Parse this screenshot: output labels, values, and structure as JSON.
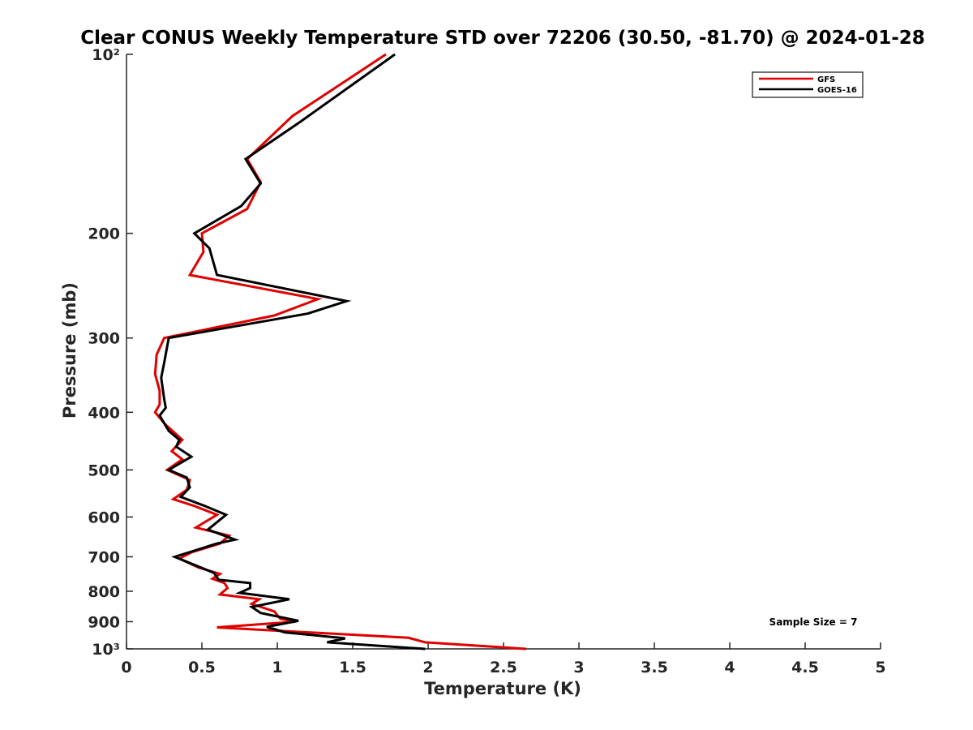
{
  "chart_data": {
    "type": "line",
    "title": "Clear CONUS Weekly Temperature STD over 72206 (30.50, -81.70) @ 2024-01-28",
    "xlabel": "Temperature (K)",
    "ylabel": "Pressure (mb)",
    "xlim": [
      0,
      5
    ],
    "ylim": [
      1000,
      100
    ],
    "y_scale": "log",
    "grid": false,
    "legend_position": "top-right",
    "x_ticks": [
      0,
      0.5,
      1,
      1.5,
      2,
      2.5,
      3,
      3.5,
      4,
      4.5,
      5
    ],
    "x_tick_labels": [
      "0",
      "0.5",
      "1",
      "1.5",
      "2",
      "2.5",
      "3",
      "3.5",
      "4",
      "4.5",
      "5"
    ],
    "y_ticks": [
      100,
      200,
      300,
      400,
      500,
      600,
      700,
      800,
      900,
      1000
    ],
    "y_tick_labels": [
      "10²",
      "200",
      "300",
      "400",
      "500",
      "600",
      "700",
      "800",
      "900",
      "10³"
    ],
    "annotation": "Sample Size = 7",
    "series": [
      {
        "name": "GFS",
        "color": "#e00000",
        "points": [
          [
            1.72,
            100
          ],
          [
            1.1,
            127
          ],
          [
            0.8,
            150
          ],
          [
            0.89,
            164
          ],
          [
            0.8,
            182
          ],
          [
            0.5,
            200
          ],
          [
            0.51,
            215
          ],
          [
            0.42,
            235
          ],
          [
            1.27,
            258
          ],
          [
            0.98,
            275
          ],
          [
            0.25,
            300
          ],
          [
            0.2,
            320
          ],
          [
            0.19,
            345
          ],
          [
            0.22,
            368
          ],
          [
            0.22,
            388
          ],
          [
            0.19,
            400
          ],
          [
            0.26,
            420
          ],
          [
            0.37,
            445
          ],
          [
            0.3,
            465
          ],
          [
            0.37,
            480
          ],
          [
            0.27,
            500
          ],
          [
            0.42,
            520
          ],
          [
            0.4,
            540
          ],
          [
            0.31,
            560
          ],
          [
            0.45,
            575
          ],
          [
            0.6,
            595
          ],
          [
            0.46,
            625
          ],
          [
            0.68,
            645
          ],
          [
            0.62,
            665
          ],
          [
            0.43,
            688
          ],
          [
            0.35,
            705
          ],
          [
            0.48,
            730
          ],
          [
            0.62,
            748
          ],
          [
            0.57,
            762
          ],
          [
            0.65,
            775
          ],
          [
            0.67,
            790
          ],
          [
            0.62,
            810
          ],
          [
            0.88,
            825
          ],
          [
            0.83,
            840
          ],
          [
            0.98,
            865
          ],
          [
            1.02,
            890
          ],
          [
            1.12,
            900
          ],
          [
            0.6,
            920
          ],
          [
            1.87,
            958
          ],
          [
            1.98,
            975
          ],
          [
            2.65,
            1000
          ]
        ]
      },
      {
        "name": "GOES-16",
        "color": "#000000",
        "points": [
          [
            1.78,
            100
          ],
          [
            1.15,
            130
          ],
          [
            0.79,
            150
          ],
          [
            0.89,
            165
          ],
          [
            0.76,
            180
          ],
          [
            0.45,
            200
          ],
          [
            0.55,
            212
          ],
          [
            0.6,
            235
          ],
          [
            1.46,
            260
          ],
          [
            1.2,
            273
          ],
          [
            0.28,
            300
          ],
          [
            0.25,
            330
          ],
          [
            0.23,
            350
          ],
          [
            0.25,
            380
          ],
          [
            0.26,
            393
          ],
          [
            0.22,
            405
          ],
          [
            0.28,
            430
          ],
          [
            0.35,
            445
          ],
          [
            0.33,
            457
          ],
          [
            0.43,
            475
          ],
          [
            0.28,
            500
          ],
          [
            0.4,
            515
          ],
          [
            0.42,
            535
          ],
          [
            0.36,
            555
          ],
          [
            0.52,
            575
          ],
          [
            0.66,
            595
          ],
          [
            0.54,
            630
          ],
          [
            0.72,
            655
          ],
          [
            0.6,
            665
          ],
          [
            0.32,
            700
          ],
          [
            0.58,
            745
          ],
          [
            0.61,
            765
          ],
          [
            0.82,
            775
          ],
          [
            0.82,
            790
          ],
          [
            0.75,
            805
          ],
          [
            1.08,
            825
          ],
          [
            0.83,
            850
          ],
          [
            0.89,
            870
          ],
          [
            1.14,
            897
          ],
          [
            0.93,
            918
          ],
          [
            1.05,
            938
          ],
          [
            1.45,
            960
          ],
          [
            1.33,
            975
          ],
          [
            1.98,
            1000
          ]
        ]
      }
    ]
  }
}
